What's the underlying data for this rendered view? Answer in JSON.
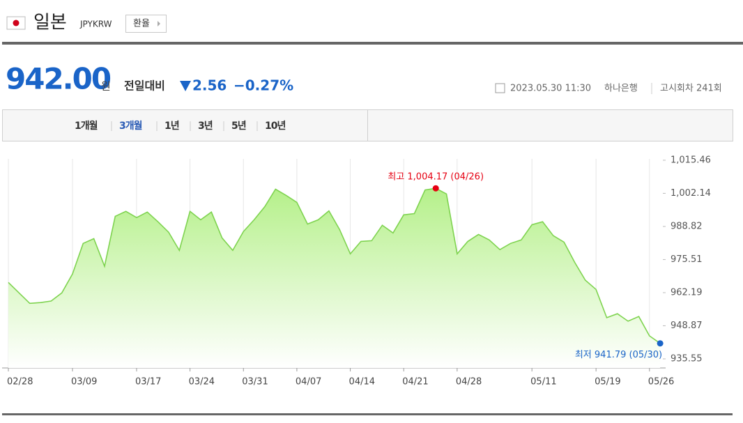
{
  "header": {
    "title": "일본",
    "code": "JPYKRW",
    "button": "환율"
  },
  "quote": {
    "price": "942.00",
    "unit": "원",
    "change_label": "전일대비",
    "change": "2.56",
    "change_pct": "−0.27%",
    "datetime": "2023.05.30 11:30",
    "bank": "하나은행",
    "round": "고시회차 241회"
  },
  "tabs": [
    "1개월",
    "3개월",
    "1년",
    "3년",
    "5년",
    "10년"
  ],
  "selected_tab": "3개월",
  "chart_data": {
    "type": "area",
    "categories": [
      "02/28",
      null,
      null,
      null,
      null,
      null,
      "03/09",
      null,
      null,
      null,
      null,
      null,
      "03/17",
      null,
      null,
      null,
      null,
      "03/24",
      null,
      null,
      null,
      null,
      "03/31",
      null,
      null,
      null,
      null,
      "04/07",
      null,
      null,
      null,
      null,
      "04/14",
      null,
      null,
      null,
      null,
      "04/21",
      null,
      null,
      null,
      null,
      "04/28",
      null,
      null,
      null,
      null,
      null,
      null,
      "05/11",
      null,
      null,
      null,
      null,
      null,
      "05/19",
      null,
      null,
      null,
      null,
      "05/26",
      null
    ],
    "values": [
      966.3,
      962.1,
      957.9,
      958.2,
      958.8,
      962.1,
      969.7,
      982.0,
      983.9,
      972.8,
      992.9,
      994.9,
      992.4,
      994.6,
      990.7,
      986.5,
      979.2,
      994.9,
      991.5,
      994.6,
      984.2,
      979.2,
      986.8,
      991.5,
      996.8,
      1003.8,
      1001.3,
      998.5,
      989.8,
      991.5,
      995.1,
      987.6,
      977.8,
      982.8,
      983.1,
      989.3,
      986.2,
      993.5,
      994.0,
      1003.5,
      1004.17,
      1001.9,
      977.8,
      982.8,
      985.6,
      983.4,
      979.5,
      982.0,
      983.4,
      989.5,
      990.7,
      985.1,
      982.5,
      974.4,
      967.2,
      963.5,
      952.1,
      953.7,
      950.7,
      952.6,
      944.8,
      941.79
    ],
    "color": "#7ed34f",
    "high_label": "최고 1,004.17 (04/26)",
    "high_color": "#e60012",
    "low_label": "최저 941.79 (05/30)",
    "low_color": "#1a64c8",
    "ylim": [
      931.9,
      1016
    ],
    "yticks": [
      {
        "value": 935.55,
        "label": "935.55"
      },
      {
        "value": 948.87,
        "label": "948.87"
      },
      {
        "value": 962.19,
        "label": "962.19"
      },
      {
        "value": 975.51,
        "label": "975.51"
      },
      {
        "value": 988.82,
        "label": "988.82"
      },
      {
        "value": 1002.14,
        "label": "1,002.14"
      },
      {
        "value": 1015.46,
        "label": "1,015.46"
      }
    ],
    "grid": "x"
  }
}
